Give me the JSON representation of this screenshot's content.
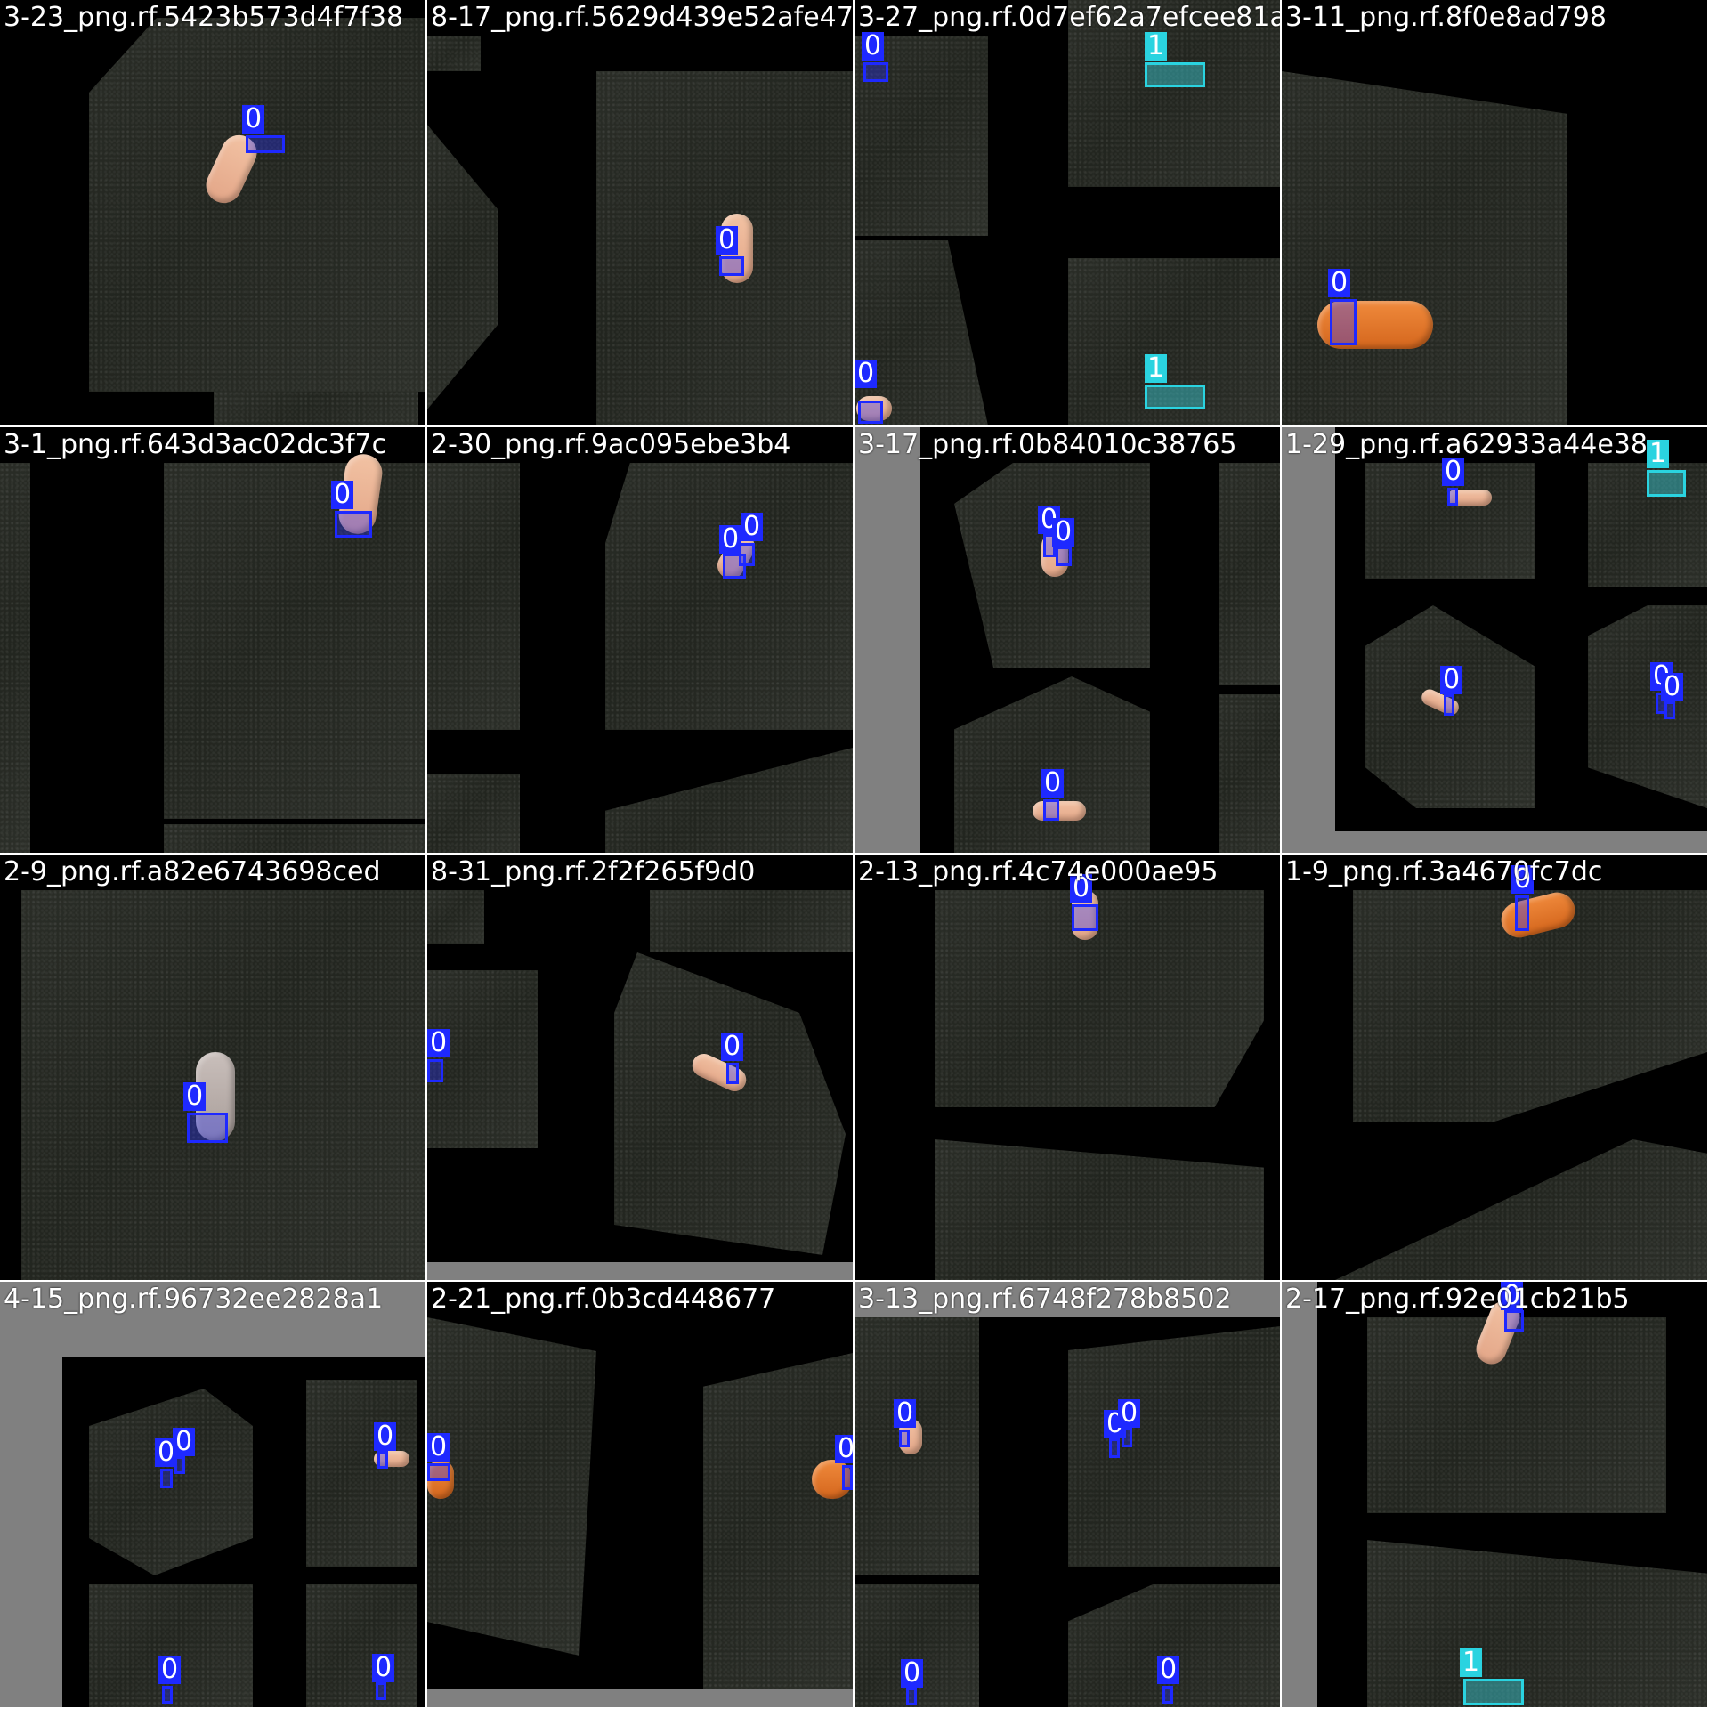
{
  "titles": [
    "3-23_png.rf.5423b573d4f7f38",
    "8-17_png.rf.5629d439e52afe47",
    "3-27_png.rf.0d7ef62a7efcee81a",
    "3-11_png.rf.8f0e8ad798",
    "3-1_png.rf.643d3ac02dc3f7c",
    "2-30_png.rf.9ac095ebe3b4",
    "3-17_png.rf.0b84010c38765",
    "1-29_png.rf.a62933a44e38",
    "2-9_png.rf.a82e6743698ced",
    "8-31_png.rf.2f2f265f9d0",
    "2-13_png.rf.4c74e000ae95",
    "1-9_png.rf.3a4670fc7dc",
    "4-15_png.rf.96732ee2828a1",
    "2-21_png.rf.0b3cd448677",
    "3-13_png.rf.6748f278b8502",
    "2-17_png.rf.92e01cb21b5"
  ],
  "class_labels": {
    "c0": "0",
    "c1": "1"
  },
  "colors": {
    "class0": "#1e29ff",
    "class1": "#2ad3e0",
    "pad": "#808080",
    "bg": "#000000"
  }
}
